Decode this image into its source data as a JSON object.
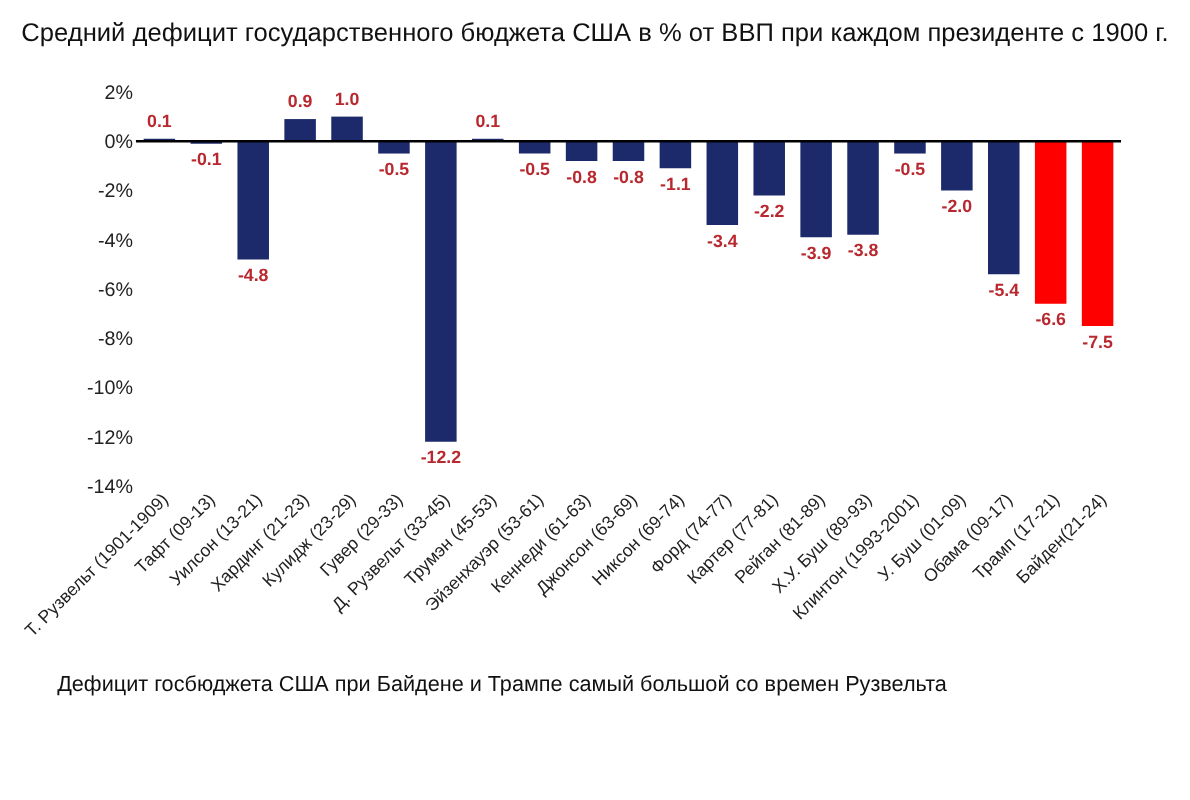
{
  "chart_data": {
    "type": "bar",
    "title": "Средний дефицит государственного бюджета США в % от ВВП при каждом президенте с 1900 г.",
    "categories": [
      "Т. Рузвельт (1901-1909)",
      "Тафт (09-13)",
      "Уилсон (13-21)",
      "Хардинг (21-23)",
      "Кулидж (23-29)",
      "Гувер (29-33)",
      "Д. Рузвельт (33-45)",
      "Трумэн (45-53)",
      "Эйзенхауэр (53-61)",
      "Кеннеди (61-63)",
      "Джонсон (63-69)",
      "Никсон (69-74)",
      "Форд (74-77)",
      "Картер (77-81)",
      "Рейган (81-89)",
      "Х.У. Буш (89-93)",
      "Клинтон (1993-2001)",
      "У. Буш (01-09)",
      "Обама (09-17)",
      "Трамп (17-21)",
      "Байден(21-24)"
    ],
    "values": [
      0.1,
      -0.1,
      -4.8,
      0.9,
      1.0,
      -0.5,
      -12.2,
      0.1,
      -0.5,
      -0.8,
      -0.8,
      -1.1,
      -3.4,
      -2.2,
      -3.9,
      -3.8,
      -0.5,
      -2.0,
      -5.4,
      -6.6,
      -7.5
    ],
    "value_labels": [
      "0.1",
      "-0.1",
      "-4.8",
      "0.9",
      "1.0",
      "-0.5",
      "-12.2",
      "0.1",
      "-0.5",
      "-0.8",
      "-0.8",
      "-1.1",
      "-3.4",
      "-2.2",
      "-3.9",
      "-3.8",
      "-0.5",
      "-2.0",
      "-5.4",
      "-6.6",
      "-7.5"
    ],
    "colors": [
      "#1c2a6b",
      "#1c2a6b",
      "#1c2a6b",
      "#1c2a6b",
      "#1c2a6b",
      "#1c2a6b",
      "#1c2a6b",
      "#1c2a6b",
      "#1c2a6b",
      "#1c2a6b",
      "#1c2a6b",
      "#1c2a6b",
      "#1c2a6b",
      "#1c2a6b",
      "#1c2a6b",
      "#1c2a6b",
      "#1c2a6b",
      "#1c2a6b",
      "#1c2a6b",
      "#ff0000",
      "#ff0000"
    ],
    "ylim": [
      -14,
      2
    ],
    "yticks": [
      {
        "value": -14,
        "label": "-14%"
      },
      {
        "value": -12,
        "label": "-12%"
      },
      {
        "value": -10,
        "label": "-10%"
      },
      {
        "value": -8,
        "label": "-8%"
      },
      {
        "value": -6,
        "label": "-6%"
      },
      {
        "value": -4,
        "label": "-4%"
      },
      {
        "value": -2,
        "label": "-2%"
      },
      {
        "value": 0,
        "label": "0%"
      },
      {
        "value": 2,
        "label": "2%"
      }
    ],
    "ref_lines": [
      {
        "axis": "y",
        "value": 0,
        "color": "#000000"
      }
    ],
    "grid": false,
    "annotations": [
      "Дефицит госбюджета США при Байдене и Трампе самый большой со времен Рузвельта"
    ]
  }
}
